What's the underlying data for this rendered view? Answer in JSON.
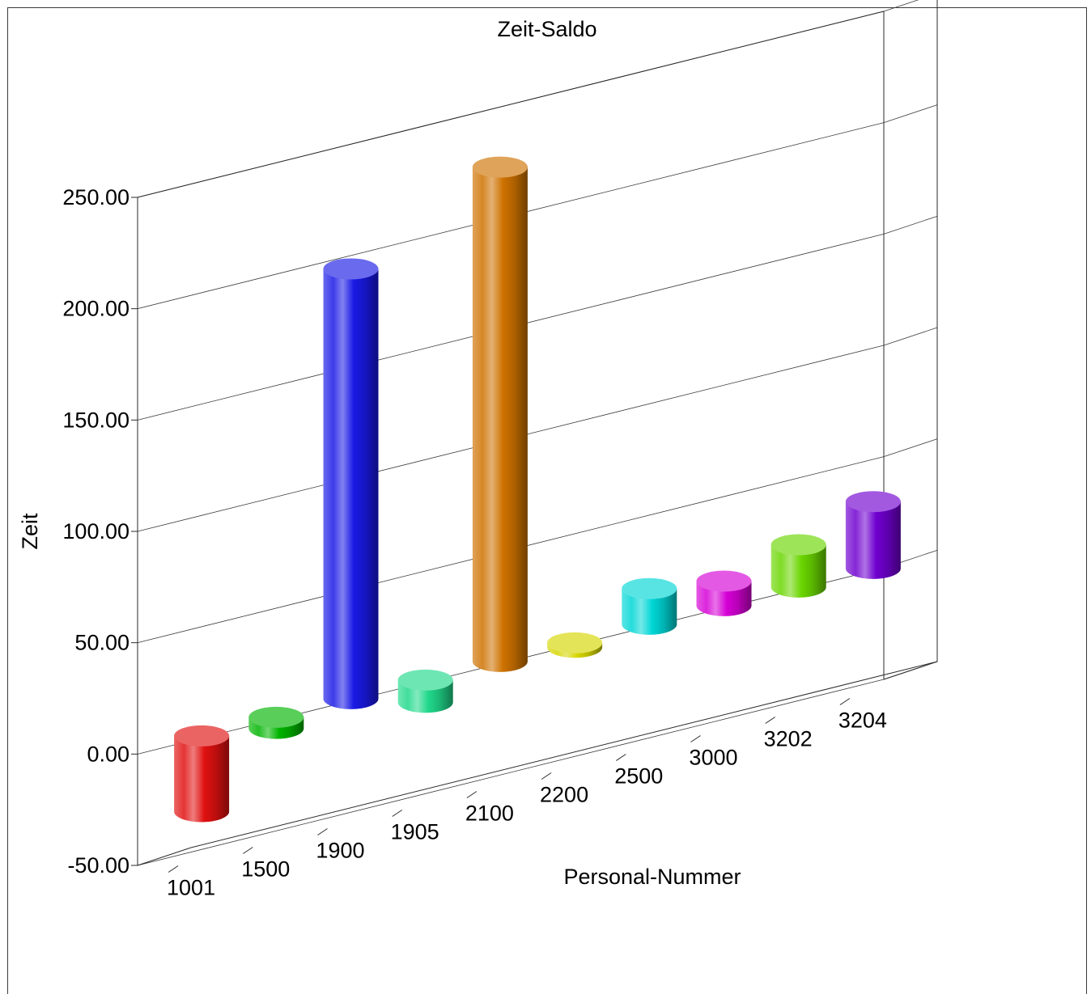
{
  "chart_data": {
    "type": "bar",
    "title": "Zeit-Saldo",
    "xlabel": "Personal-Nummer",
    "ylabel": "Zeit",
    "categories": [
      "1001",
      "1500",
      "1900",
      "1905",
      "2100",
      "2200",
      "2500",
      "3000",
      "3202",
      "3204"
    ],
    "values": [
      -34,
      -5,
      193,
      -10,
      222,
      -2,
      16,
      11,
      19,
      30
    ],
    "ylim": [
      -50,
      250
    ],
    "yticks": [
      "-50.00",
      "0.00",
      "50.00",
      "100.00",
      "150.00",
      "200.00",
      "250.00"
    ],
    "grid": true,
    "legend": "none",
    "colors": [
      "#e01010",
      "#00b400",
      "#1a1ae6",
      "#20d88a",
      "#ce7200",
      "#d6d600",
      "#00d6d6",
      "#d600d6",
      "#6ad600",
      "#7000d0"
    ]
  }
}
